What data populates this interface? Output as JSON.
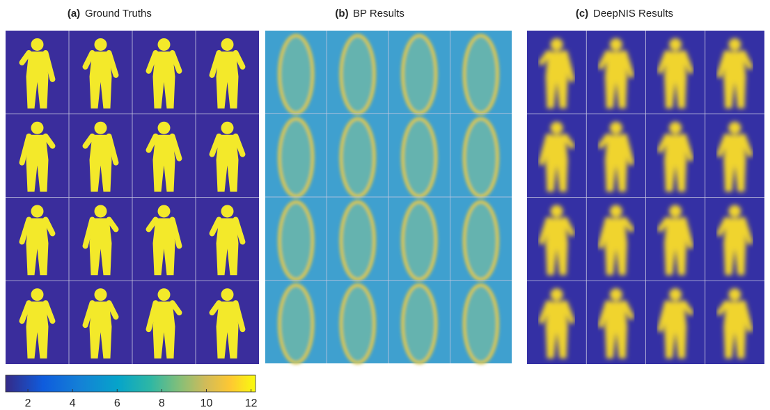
{
  "panels": [
    {
      "label": "(a)",
      "title": "Ground Truths"
    },
    {
      "label": "(b)",
      "title": "BP Results"
    },
    {
      "label": "(c)",
      "title": "DeepNIS Results"
    }
  ],
  "colorbar": {
    "lim": [
      1,
      12.2
    ],
    "ticks": [
      2,
      4,
      6,
      8,
      10,
      12
    ]
  }
}
